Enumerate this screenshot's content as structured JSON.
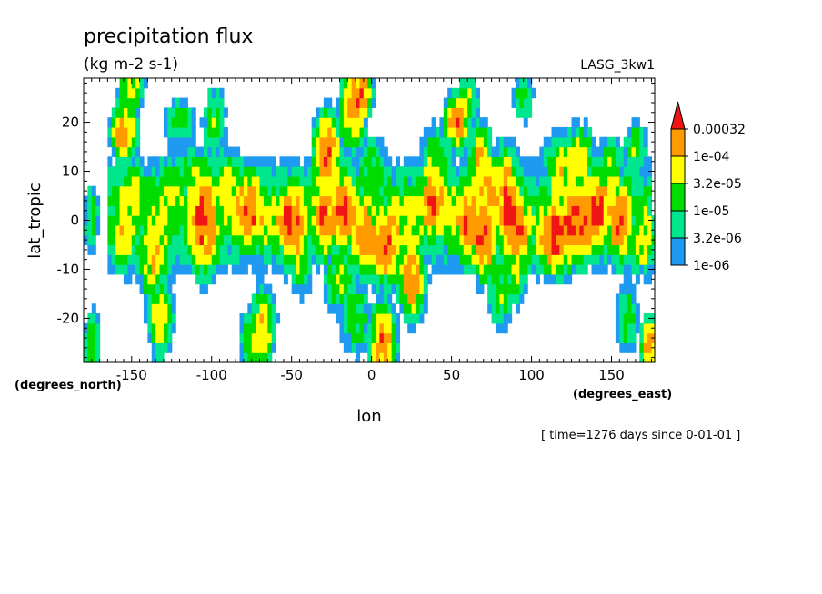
{
  "chart_data": {
    "type": "heatmap",
    "title": "precipitation flux",
    "subtitle": "(kg m-2 s-1)",
    "dataset_label": "LASG_3kw1",
    "xlabel": "lon",
    "ylabel": "lat_tropic",
    "x_units": "(degrees_east)",
    "y_units": "(degrees_north)",
    "time_label": "[ time=1276 days since 0-01-01 ]",
    "xlim": [
      -180,
      177
    ],
    "ylim": [
      -29,
      29
    ],
    "x_ticks": [
      -150,
      -100,
      -50,
      0,
      50,
      100,
      150
    ],
    "x_tick_labels": [
      "-150",
      "-100",
      "-50",
      "0",
      "50",
      "100",
      "150"
    ],
    "y_ticks": [
      -20,
      -10,
      0,
      10,
      20
    ],
    "y_tick_labels": [
      "-20",
      "-10",
      "0",
      "10",
      "20"
    ],
    "color_scale": "log",
    "color_levels": [
      1e-06,
      3.2e-06,
      1e-05,
      3.2e-05,
      0.0001,
      0.00032
    ],
    "colorbar_labels": [
      "1e-06",
      "3.2e-06",
      "1e-05",
      "3.2e-05",
      "1e-04",
      "0.00032"
    ],
    "colors": [
      "#ffffff",
      "#1e9bf0",
      "#00e68c",
      "#00dc00",
      "#ffff00",
      "#ff9a00",
      "#f01414"
    ],
    "colors_top_triangle": "#f01414",
    "features": [
      {
        "lon": -155,
        "lat": 18,
        "peak": 0.00035,
        "sx": 3,
        "sy": 2
      },
      {
        "lon": -150,
        "lat": 5,
        "peak": 5e-05,
        "sx": 4,
        "sy": 3
      },
      {
        "lon": -155,
        "lat": -3,
        "peak": 6e-05,
        "sx": 4,
        "sy": 3
      },
      {
        "lon": -135,
        "lat": -5,
        "peak": 6e-05,
        "sx": 4,
        "sy": 4
      },
      {
        "lon": -138,
        "lat": -10,
        "peak": 4e-05,
        "sx": 3,
        "sy": 3
      },
      {
        "lon": -132,
        "lat": -20,
        "peak": 0.0001,
        "sx": 3,
        "sy": 3
      },
      {
        "lon": -125,
        "lat": 5,
        "peak": 4e-05,
        "sx": 5,
        "sy": 3
      },
      {
        "lon": -120,
        "lat": 20,
        "peak": 2e-05,
        "sx": 4,
        "sy": 2
      },
      {
        "lon": -105,
        "lat": 0,
        "peak": 0.0004,
        "sx": 4,
        "sy": 4
      },
      {
        "lon": -110,
        "lat": 10,
        "peak": 3e-05,
        "sx": 4,
        "sy": 2
      },
      {
        "lon": -98,
        "lat": 20,
        "peak": 3e-05,
        "sx": 3,
        "sy": 3
      },
      {
        "lon": -77,
        "lat": 2,
        "peak": 0.00032,
        "sx": 4,
        "sy": 3
      },
      {
        "lon": -90,
        "lat": 6,
        "peak": 6e-05,
        "sx": 4,
        "sy": 3
      },
      {
        "lon": -65,
        "lat": 0,
        "peak": 5e-05,
        "sx": 4,
        "sy": 3
      },
      {
        "lon": -50,
        "lat": 0,
        "peak": 0.0004,
        "sx": 4,
        "sy": 3
      },
      {
        "lon": -45,
        "lat": -8,
        "peak": 4e-05,
        "sx": 3,
        "sy": 3
      },
      {
        "lon": -68,
        "lat": -22,
        "peak": 0.0001,
        "sx": 3,
        "sy": 3
      },
      {
        "lon": -75,
        "lat": -25,
        "peak": 3e-05,
        "sx": 3,
        "sy": 3
      },
      {
        "lon": -28,
        "lat": 14,
        "peak": 0.0004,
        "sx": 3,
        "sy": 3
      },
      {
        "lon": -30,
        "lat": 1,
        "peak": 0.00032,
        "sx": 3,
        "sy": 3
      },
      {
        "lon": -18,
        "lat": 2,
        "peak": 0.0004,
        "sx": 4,
        "sy": 3
      },
      {
        "lon": -5,
        "lat": -3,
        "peak": 0.00035,
        "sx": 3,
        "sy": 3
      },
      {
        "lon": -12,
        "lat": 22,
        "peak": 0.0002,
        "sx": 3,
        "sy": 3
      },
      {
        "lon": -8,
        "lat": 26,
        "peak": 0.00035,
        "sx": 3,
        "sy": 2
      },
      {
        "lon": -20,
        "lat": -12,
        "peak": 3e-05,
        "sx": 4,
        "sy": 3
      },
      {
        "lon": -10,
        "lat": -20,
        "peak": 3e-05,
        "sx": 4,
        "sy": 3
      },
      {
        "lon": 8,
        "lat": -5,
        "peak": 0.00035,
        "sx": 4,
        "sy": 3
      },
      {
        "lon": 7,
        "lat": -25,
        "peak": 0.00032,
        "sx": 3,
        "sy": 3
      },
      {
        "lon": 0,
        "lat": 10,
        "peak": 2e-05,
        "sx": 4,
        "sy": 3
      },
      {
        "lon": 15,
        "lat": 0,
        "peak": 5e-05,
        "sx": 3,
        "sy": 3
      },
      {
        "lon": 25,
        "lat": -12,
        "peak": 0.00035,
        "sx": 3,
        "sy": 3
      },
      {
        "lon": 25,
        "lat": 0,
        "peak": 6e-05,
        "sx": 3,
        "sy": 3
      },
      {
        "lon": 38,
        "lat": 4,
        "peak": 0.00035,
        "sx": 3,
        "sy": 3
      },
      {
        "lon": 48,
        "lat": 2,
        "peak": 5e-05,
        "sx": 4,
        "sy": 3
      },
      {
        "lon": 53,
        "lat": 20,
        "peak": 0.00032,
        "sx": 3,
        "sy": 2
      },
      {
        "lon": 40,
        "lat": 12,
        "peak": 3e-05,
        "sx": 4,
        "sy": 3
      },
      {
        "lon": 60,
        "lat": 0,
        "peak": 0.0004,
        "sx": 3,
        "sy": 3
      },
      {
        "lon": 70,
        "lat": -4,
        "peak": 0.0004,
        "sx": 3,
        "sy": 3
      },
      {
        "lon": 73,
        "lat": 5,
        "peak": 0.0002,
        "sx": 3,
        "sy": 3
      },
      {
        "lon": 68,
        "lat": 12,
        "peak": 0.0001,
        "sx": 3,
        "sy": 3
      },
      {
        "lon": 85,
        "lat": 4,
        "peak": 0.0004,
        "sx": 3,
        "sy": 4
      },
      {
        "lon": 92,
        "lat": -2,
        "peak": 0.00032,
        "sx": 3,
        "sy": 3
      },
      {
        "lon": 80,
        "lat": -15,
        "peak": 3e-05,
        "sx": 3,
        "sy": 3
      },
      {
        "lon": 90,
        "lat": -10,
        "peak": 4e-05,
        "sx": 3,
        "sy": 3
      },
      {
        "lon": 115,
        "lat": -3,
        "peak": 0.0004,
        "sx": 5,
        "sy": 3
      },
      {
        "lon": 130,
        "lat": 0,
        "peak": 0.0004,
        "sx": 5,
        "sy": 3
      },
      {
        "lon": 142,
        "lat": 2,
        "peak": 0.0004,
        "sx": 3,
        "sy": 3
      },
      {
        "lon": 155,
        "lat": 0,
        "peak": 0.00032,
        "sx": 3,
        "sy": 3
      },
      {
        "lon": 170,
        "lat": -4,
        "peak": 5e-05,
        "sx": 4,
        "sy": 3
      },
      {
        "lon": 118,
        "lat": 10,
        "peak": 6e-05,
        "sx": 4,
        "sy": 3
      },
      {
        "lon": 130,
        "lat": 12,
        "peak": 6e-05,
        "sx": 4,
        "sy": 3
      },
      {
        "lon": 150,
        "lat": 10,
        "peak": 4e-05,
        "sx": 3,
        "sy": 3
      },
      {
        "lon": 165,
        "lat": 15,
        "peak": 3e-05,
        "sx": 3,
        "sy": 2
      },
      {
        "lon": 174,
        "lat": -25,
        "peak": 0.00032,
        "sx": 2,
        "sy": 2
      },
      {
        "lon": 160,
        "lat": -20,
        "peak": 2e-05,
        "sx": 3,
        "sy": 3
      },
      {
        "lon": 95,
        "lat": 25,
        "peak": 2e-05,
        "sx": 3,
        "sy": 2
      },
      {
        "lon": 60,
        "lat": 25,
        "peak": 3e-05,
        "sx": 3,
        "sy": 2
      },
      {
        "lon": -150,
        "lat": 27,
        "peak": 0.0001,
        "sx": 3,
        "sy": 2
      },
      {
        "lon": -175,
        "lat": 0,
        "peak": 2e-05,
        "sx": 2,
        "sy": 3
      },
      {
        "lon": -175,
        "lat": -25,
        "peak": 3e-05,
        "sx": 2,
        "sy": 3
      }
    ],
    "bands": [
      {
        "lon0": -165,
        "lon1": 175,
        "lat": 1,
        "halfwidth": 5,
        "level": 1.5e-05
      }
    ]
  }
}
